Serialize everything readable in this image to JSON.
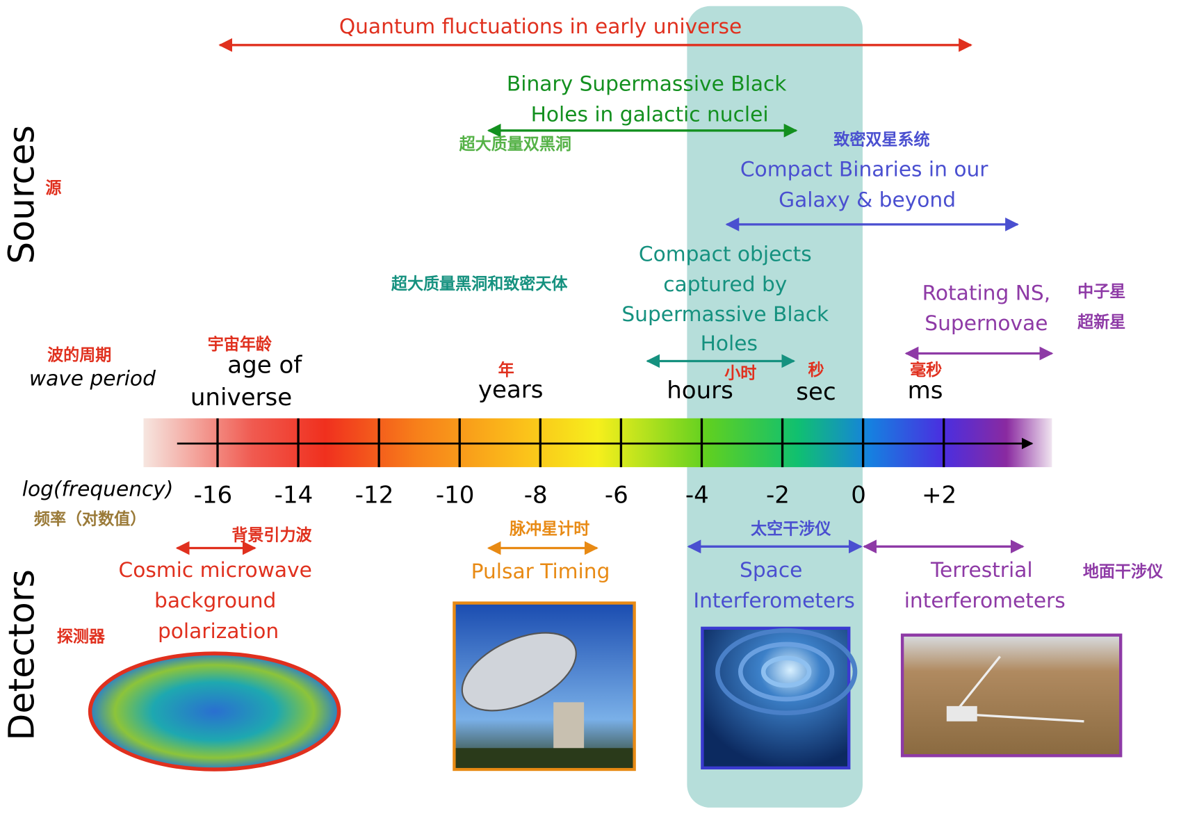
{
  "side_labels": {
    "sources": "Sources",
    "sources_cn": "源",
    "detectors": "Detectors",
    "detectors_cn": "探测器"
  },
  "sources": {
    "quantum": "Quantum fluctuations in early universe",
    "binary_smbh": {
      "lines": [
        "Binary Supermassive Black",
        "Holes in galactic nuclei"
      ],
      "cn": "超大质量双黑洞"
    },
    "compact_binaries": {
      "cn": "致密双星系统",
      "lines": [
        "Compact Binaries in our",
        "Galaxy & beyond"
      ]
    },
    "emri": {
      "cn": "超大质量黑洞和致密天体",
      "lines": [
        "Compact objects",
        "captured by",
        "Supermassive Black",
        "Holes"
      ]
    },
    "rotating_ns": {
      "lines": [
        "Rotating NS,",
        "Supernovae"
      ],
      "cn": [
        "中子星",
        "超新星"
      ]
    }
  },
  "period": {
    "label_cn": "波的周期",
    "label": "wave period",
    "marks": [
      {
        "cn": "宇宙年龄",
        "lines": [
          "age of",
          "universe"
        ]
      },
      {
        "cn": "年",
        "lines": [
          "years"
        ]
      },
      {
        "cn": "小时",
        "lines": [
          "hours"
        ]
      },
      {
        "cn": "秒",
        "lines": [
          "sec"
        ]
      },
      {
        "cn": "毫秒",
        "lines": [
          "ms"
        ]
      }
    ]
  },
  "frequency": {
    "label": "log(frequency)",
    "label_cn": "频率（对数值）",
    "ticks": [
      "-16",
      "-14",
      "-12",
      "-10",
      "-8",
      "-6",
      "-4",
      "-2",
      "0",
      "+2"
    ]
  },
  "detectors": [
    {
      "cn": "背景引力波",
      "lines": [
        "Cosmic microwave",
        "background",
        "polarization"
      ]
    },
    {
      "cn": "脉冲星计时",
      "lines": [
        "Pulsar Timing"
      ]
    },
    {
      "cn": "太空干涉仪",
      "lines": [
        "Space",
        "Interferometers"
      ]
    },
    {
      "cn": "地面干涉仪",
      "lines": [
        "Terrestrial",
        "interferometers"
      ]
    }
  ]
}
